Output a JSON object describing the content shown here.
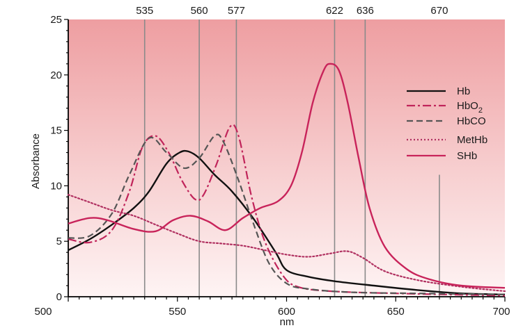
{
  "chart_data": {
    "type": "line",
    "title": "",
    "xlabel": "nm",
    "ylabel": "Absorbance",
    "xlim": [
      500,
      700
    ],
    "ylim": [
      0,
      25
    ],
    "x_ticks": [
      500,
      550,
      600,
      650,
      700
    ],
    "y_ticks": [
      0,
      5,
      10,
      15,
      20,
      25
    ],
    "grid": false,
    "legend_position": "right",
    "reference_lines": [
      535,
      560,
      577,
      622,
      636,
      670
    ],
    "series": [
      {
        "name": "Hb",
        "color": "#111111",
        "dash": "solid",
        "points": [
          [
            500,
            4.2
          ],
          [
            510,
            5.2
          ],
          [
            520,
            6.5
          ],
          [
            530,
            8.0
          ],
          [
            537,
            9.5
          ],
          [
            545,
            12.0
          ],
          [
            551,
            13.0
          ],
          [
            555,
            13.1
          ],
          [
            560,
            12.5
          ],
          [
            567,
            11.0
          ],
          [
            575,
            9.5
          ],
          [
            585,
            7.0
          ],
          [
            595,
            4.0
          ],
          [
            600,
            2.4
          ],
          [
            610,
            1.8
          ],
          [
            622,
            1.4
          ],
          [
            640,
            1.0
          ],
          [
            660,
            0.6
          ],
          [
            680,
            0.3
          ],
          [
            700,
            0.2
          ]
        ]
      },
      {
        "name": "HbO2",
        "label_main": "HbO",
        "label_sub": "2",
        "color": "#c0245a",
        "dash": "12 4 3 4",
        "points": [
          [
            500,
            5.2
          ],
          [
            510,
            4.9
          ],
          [
            520,
            6.0
          ],
          [
            528,
            9.5
          ],
          [
            534,
            13.5
          ],
          [
            540,
            14.5
          ],
          [
            546,
            13.0
          ],
          [
            552,
            10.5
          ],
          [
            558,
            8.8
          ],
          [
            562,
            9.2
          ],
          [
            568,
            12.0
          ],
          [
            574,
            15.3
          ],
          [
            578,
            14.5
          ],
          [
            584,
            9.0
          ],
          [
            590,
            5.0
          ],
          [
            598,
            2.0
          ],
          [
            605,
            0.9
          ],
          [
            620,
            0.5
          ],
          [
            650,
            0.3
          ],
          [
            700,
            0.1
          ]
        ]
      },
      {
        "name": "HbCO",
        "color": "#555555",
        "dash": "9 5",
        "points": [
          [
            500,
            5.3
          ],
          [
            510,
            5.5
          ],
          [
            520,
            7.5
          ],
          [
            528,
            11.0
          ],
          [
            537,
            14.3
          ],
          [
            545,
            13.0
          ],
          [
            553,
            11.6
          ],
          [
            560,
            12.5
          ],
          [
            567,
            14.5
          ],
          [
            571,
            14.0
          ],
          [
            578,
            10.5
          ],
          [
            585,
            6.5
          ],
          [
            592,
            3.0
          ],
          [
            600,
            1.2
          ],
          [
            610,
            0.7
          ],
          [
            630,
            0.4
          ],
          [
            660,
            0.3
          ],
          [
            700,
            0.2
          ]
        ]
      },
      {
        "name": "MetHb",
        "color": "#b03060",
        "dash": "2 3",
        "points": [
          [
            500,
            9.2
          ],
          [
            510,
            8.5
          ],
          [
            520,
            7.8
          ],
          [
            530,
            7.3
          ],
          [
            540,
            6.5
          ],
          [
            550,
            5.7
          ],
          [
            560,
            5.0
          ],
          [
            570,
            4.8
          ],
          [
            580,
            4.6
          ],
          [
            590,
            4.2
          ],
          [
            600,
            3.8
          ],
          [
            610,
            3.6
          ],
          [
            620,
            3.9
          ],
          [
            628,
            4.1
          ],
          [
            635,
            3.5
          ],
          [
            645,
            2.3
          ],
          [
            660,
            1.5
          ],
          [
            680,
            0.9
          ],
          [
            700,
            0.5
          ]
        ]
      },
      {
        "name": "SHb",
        "color": "#c8235a",
        "dash": "solid",
        "points": [
          [
            500,
            6.6
          ],
          [
            510,
            7.1
          ],
          [
            518,
            6.9
          ],
          [
            530,
            6.1
          ],
          [
            540,
            5.9
          ],
          [
            548,
            6.9
          ],
          [
            556,
            7.3
          ],
          [
            564,
            6.8
          ],
          [
            572,
            6.0
          ],
          [
            580,
            7.1
          ],
          [
            588,
            8.0
          ],
          [
            596,
            8.6
          ],
          [
            602,
            10.0
          ],
          [
            607,
            13.0
          ],
          [
            612,
            17.5
          ],
          [
            617,
            20.4
          ],
          [
            620,
            21.0
          ],
          [
            624,
            20.4
          ],
          [
            628,
            17.5
          ],
          [
            633,
            12.5
          ],
          [
            638,
            8.0
          ],
          [
            645,
            4.5
          ],
          [
            655,
            2.5
          ],
          [
            665,
            1.6
          ],
          [
            680,
            1.0
          ],
          [
            700,
            0.8
          ]
        ]
      }
    ]
  }
}
